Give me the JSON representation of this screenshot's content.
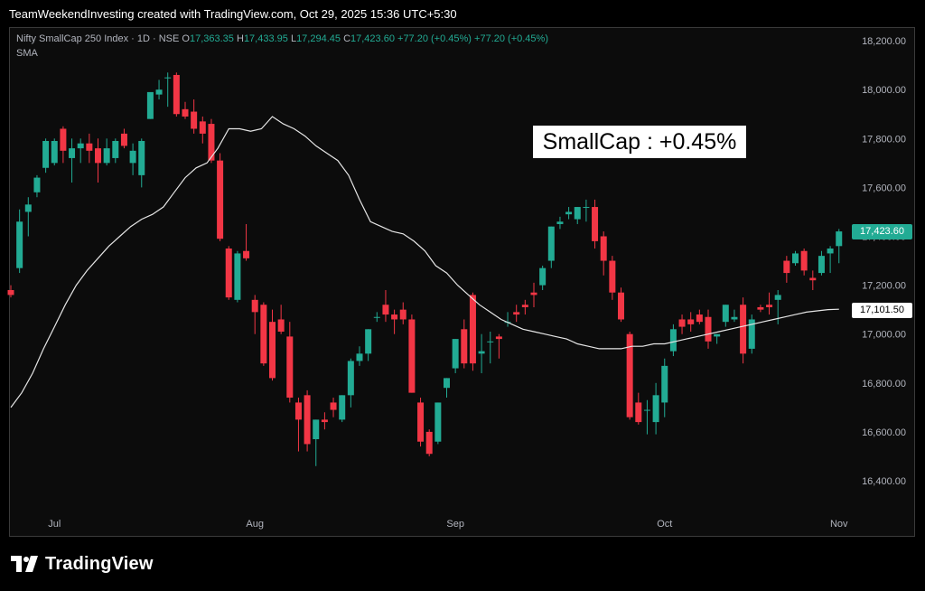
{
  "credit": "TeamWeekendInvesting created with TradingView.com, Oct 29, 2025 15:36 UTC+5:30",
  "legend": {
    "symbol": "Nifty SmallCap 250 Index · 1D · NSE",
    "open_label": "O",
    "open": "17,363.35",
    "high_label": "H",
    "high": "17,433.95",
    "low_label": "L",
    "low": "17,294.45",
    "close_label": "C",
    "close": "17,423.60",
    "change": "+77.20 (+0.45%)",
    "change2": "+77.20 (+0.45%)"
  },
  "indicator_label": "SMA",
  "annotation": "SmallCap : +0.45%",
  "price_tags": {
    "last": "17,423.60",
    "sma": "17,101.50"
  },
  "brand": {
    "name": "TradingView",
    "logo": "tradingview-logo-icon"
  },
  "colors": {
    "up": "#22ab94",
    "down": "#f23645",
    "sma": "#e6e6e6",
    "background": "#0c0c0c"
  },
  "chart_data": {
    "type": "candlestick",
    "ylim": [
      16250,
      18300
    ],
    "y_ticks": [
      "18,200.00",
      "18,000.00",
      "17,800.00",
      "17,600.00",
      "17,400.00",
      "17,200.00",
      "17,000.00",
      "16,800.00",
      "16,600.00",
      "16,400.00"
    ],
    "y_tick_values": [
      18200,
      18000,
      17800,
      17600,
      17400,
      17200,
      17000,
      16800,
      16600,
      16400
    ],
    "x_ticks": [
      "Jul",
      "Aug",
      "Sep",
      "Oct",
      "Nov"
    ],
    "x_tick_bar_index": [
      5,
      28,
      51,
      75,
      95
    ],
    "candles": [
      {
        "o": 17180,
        "h": 17200,
        "l": 17150,
        "c": 17160
      },
      {
        "o": 17270,
        "h": 17510,
        "l": 17250,
        "c": 17460
      },
      {
        "o": 17500,
        "h": 17560,
        "l": 17400,
        "c": 17530
      },
      {
        "o": 17580,
        "h": 17650,
        "l": 17560,
        "c": 17640
      },
      {
        "o": 17680,
        "h": 17800,
        "l": 17660,
        "c": 17790
      },
      {
        "o": 17700,
        "h": 17800,
        "l": 17690,
        "c": 17790
      },
      {
        "o": 17840,
        "h": 17850,
        "l": 17700,
        "c": 17750
      },
      {
        "o": 17720,
        "h": 17800,
        "l": 17620,
        "c": 17760
      },
      {
        "o": 17760,
        "h": 17800,
        "l": 17700,
        "c": 17780
      },
      {
        "o": 17780,
        "h": 17820,
        "l": 17700,
        "c": 17750
      },
      {
        "o": 17760,
        "h": 17800,
        "l": 17620,
        "c": 17700
      },
      {
        "o": 17700,
        "h": 17800,
        "l": 17690,
        "c": 17760
      },
      {
        "o": 17720,
        "h": 17800,
        "l": 17700,
        "c": 17790
      },
      {
        "o": 17820,
        "h": 17840,
        "l": 17760,
        "c": 17770
      },
      {
        "o": 17700,
        "h": 17780,
        "l": 17650,
        "c": 17750
      },
      {
        "o": 17650,
        "h": 17800,
        "l": 17600,
        "c": 17790
      },
      {
        "o": 17880,
        "h": 17980,
        "l": 17880,
        "c": 17990
      },
      {
        "o": 17980,
        "h": 18040,
        "l": 17960,
        "c": 18000
      },
      {
        "o": 18050,
        "h": 18070,
        "l": 17930,
        "c": 18050
      },
      {
        "o": 18060,
        "h": 18070,
        "l": 17890,
        "c": 17900
      },
      {
        "o": 17920,
        "h": 17950,
        "l": 17880,
        "c": 17890
      },
      {
        "o": 17910,
        "h": 17960,
        "l": 17820,
        "c": 17840
      },
      {
        "o": 17870,
        "h": 17890,
        "l": 17780,
        "c": 17820
      },
      {
        "o": 17860,
        "h": 17880,
        "l": 17700,
        "c": 17710
      },
      {
        "o": 17710,
        "h": 17740,
        "l": 17380,
        "c": 17390
      },
      {
        "o": 17350,
        "h": 17360,
        "l": 17140,
        "c": 17150
      },
      {
        "o": 17140,
        "h": 17340,
        "l": 17130,
        "c": 17330
      },
      {
        "o": 17340,
        "h": 17450,
        "l": 17300,
        "c": 17310
      },
      {
        "o": 17140,
        "h": 17160,
        "l": 17000,
        "c": 17090
      },
      {
        "o": 17120,
        "h": 17130,
        "l": 16870,
        "c": 16880
      },
      {
        "o": 17050,
        "h": 17100,
        "l": 16810,
        "c": 16820
      },
      {
        "o": 17060,
        "h": 17120,
        "l": 17000,
        "c": 17010
      },
      {
        "o": 16990,
        "h": 17050,
        "l": 16720,
        "c": 16740
      },
      {
        "o": 16720,
        "h": 16740,
        "l": 16520,
        "c": 16650
      },
      {
        "o": 16750,
        "h": 16770,
        "l": 16520,
        "c": 16550
      },
      {
        "o": 16570,
        "h": 16650,
        "l": 16460,
        "c": 16650
      },
      {
        "o": 16650,
        "h": 16680,
        "l": 16610,
        "c": 16640
      },
      {
        "o": 16720,
        "h": 16740,
        "l": 16660,
        "c": 16690
      },
      {
        "o": 16650,
        "h": 16750,
        "l": 16640,
        "c": 16750
      },
      {
        "o": 16750,
        "h": 16900,
        "l": 16700,
        "c": 16890
      },
      {
        "o": 16890,
        "h": 16950,
        "l": 16870,
        "c": 16920
      },
      {
        "o": 16920,
        "h": 17020,
        "l": 16890,
        "c": 17020
      },
      {
        "o": 17070,
        "h": 17090,
        "l": 17050,
        "c": 17070
      },
      {
        "o": 17120,
        "h": 17180,
        "l": 17050,
        "c": 17080
      },
      {
        "o": 17080,
        "h": 17100,
        "l": 17000,
        "c": 17060
      },
      {
        "o": 17100,
        "h": 17130,
        "l": 17040,
        "c": 17060
      },
      {
        "o": 17060,
        "h": 17080,
        "l": 16760,
        "c": 16760
      },
      {
        "o": 16720,
        "h": 16740,
        "l": 16540,
        "c": 16560
      },
      {
        "o": 16600,
        "h": 16610,
        "l": 16500,
        "c": 16510
      },
      {
        "o": 16560,
        "h": 16720,
        "l": 16550,
        "c": 16720
      },
      {
        "o": 16780,
        "h": 16820,
        "l": 16740,
        "c": 16820
      },
      {
        "o": 16860,
        "h": 16980,
        "l": 16840,
        "c": 16980
      },
      {
        "o": 17020,
        "h": 17060,
        "l": 16860,
        "c": 16880
      },
      {
        "o": 17160,
        "h": 17170,
        "l": 16850,
        "c": 16880
      },
      {
        "o": 16920,
        "h": 17000,
        "l": 16840,
        "c": 16930
      },
      {
        "o": 16970,
        "h": 17010,
        "l": 16880,
        "c": 16970
      },
      {
        "o": 16990,
        "h": 17000,
        "l": 16900,
        "c": 16980
      },
      {
        "o": 17050,
        "h": 17090,
        "l": 17030,
        "c": 17050
      },
      {
        "o": 17090,
        "h": 17120,
        "l": 17050,
        "c": 17080
      },
      {
        "o": 17120,
        "h": 17140,
        "l": 17080,
        "c": 17110
      },
      {
        "o": 17170,
        "h": 17210,
        "l": 17110,
        "c": 17160
      },
      {
        "o": 17200,
        "h": 17280,
        "l": 17180,
        "c": 17270
      },
      {
        "o": 17300,
        "h": 17440,
        "l": 17270,
        "c": 17440
      },
      {
        "o": 17450,
        "h": 17480,
        "l": 17430,
        "c": 17460
      },
      {
        "o": 17490,
        "h": 17520,
        "l": 17470,
        "c": 17500
      },
      {
        "o": 17470,
        "h": 17520,
        "l": 17450,
        "c": 17520
      },
      {
        "o": 17520,
        "h": 17550,
        "l": 17460,
        "c": 17520
      },
      {
        "o": 17520,
        "h": 17550,
        "l": 17350,
        "c": 17380
      },
      {
        "o": 17400,
        "h": 17420,
        "l": 17240,
        "c": 17300
      },
      {
        "o": 17300,
        "h": 17320,
        "l": 17140,
        "c": 17170
      },
      {
        "o": 17170,
        "h": 17190,
        "l": 17050,
        "c": 17060
      },
      {
        "o": 17000,
        "h": 17010,
        "l": 16650,
        "c": 16660
      },
      {
        "o": 16720,
        "h": 16760,
        "l": 16630,
        "c": 16640
      },
      {
        "o": 16690,
        "h": 16730,
        "l": 16590,
        "c": 16690
      },
      {
        "o": 16640,
        "h": 16800,
        "l": 16590,
        "c": 16750
      },
      {
        "o": 16720,
        "h": 16900,
        "l": 16660,
        "c": 16870
      },
      {
        "o": 16930,
        "h": 17040,
        "l": 16910,
        "c": 17020
      },
      {
        "o": 17060,
        "h": 17080,
        "l": 17000,
        "c": 17030
      },
      {
        "o": 17060,
        "h": 17090,
        "l": 17010,
        "c": 17040
      },
      {
        "o": 17080,
        "h": 17100,
        "l": 17040,
        "c": 17050
      },
      {
        "o": 17070,
        "h": 17100,
        "l": 16940,
        "c": 16970
      },
      {
        "o": 16990,
        "h": 17000,
        "l": 16960,
        "c": 17000
      },
      {
        "o": 17050,
        "h": 17120,
        "l": 17030,
        "c": 17120
      },
      {
        "o": 17060,
        "h": 17100,
        "l": 17050,
        "c": 17070
      },
      {
        "o": 17120,
        "h": 17150,
        "l": 16880,
        "c": 16920
      },
      {
        "o": 16940,
        "h": 17080,
        "l": 16920,
        "c": 17060
      },
      {
        "o": 17110,
        "h": 17120,
        "l": 17090,
        "c": 17100
      },
      {
        "o": 17120,
        "h": 17170,
        "l": 17080,
        "c": 17110
      },
      {
        "o": 17140,
        "h": 17180,
        "l": 17040,
        "c": 17160
      },
      {
        "o": 17300,
        "h": 17320,
        "l": 17210,
        "c": 17250
      },
      {
        "o": 17290,
        "h": 17340,
        "l": 17280,
        "c": 17330
      },
      {
        "o": 17340,
        "h": 17350,
        "l": 17240,
        "c": 17260
      },
      {
        "o": 17230,
        "h": 17260,
        "l": 17180,
        "c": 17220
      },
      {
        "o": 17250,
        "h": 17340,
        "l": 17240,
        "c": 17320
      },
      {
        "o": 17330,
        "h": 17360,
        "l": 17250,
        "c": 17350
      },
      {
        "o": 17360,
        "h": 17430,
        "l": 17290,
        "c": 17420
      }
    ],
    "sma": [
      16700,
      16760,
      16840,
      16940,
      17030,
      17120,
      17200,
      17260,
      17310,
      17360,
      17400,
      17440,
      17470,
      17490,
      17520,
      17580,
      17640,
      17680,
      17700,
      17760,
      17840,
      17840,
      17830,
      17840,
      17890,
      17860,
      17840,
      17810,
      17770,
      17740,
      17710,
      17650,
      17550,
      17460,
      17440,
      17420,
      17410,
      17380,
      17340,
      17280,
      17250,
      17200,
      17160,
      17120,
      17090,
      17060,
      17040,
      17020,
      17010,
      17000,
      16990,
      16980,
      16960,
      16950,
      16940,
      16940,
      16940,
      16950,
      16950,
      16960,
      16960,
      16970,
      16980,
      16990,
      17000,
      17010,
      17020,
      17030,
      17040,
      17050,
      17060,
      17070,
      17080,
      17090,
      17095,
      17100,
      17101.5
    ]
  }
}
